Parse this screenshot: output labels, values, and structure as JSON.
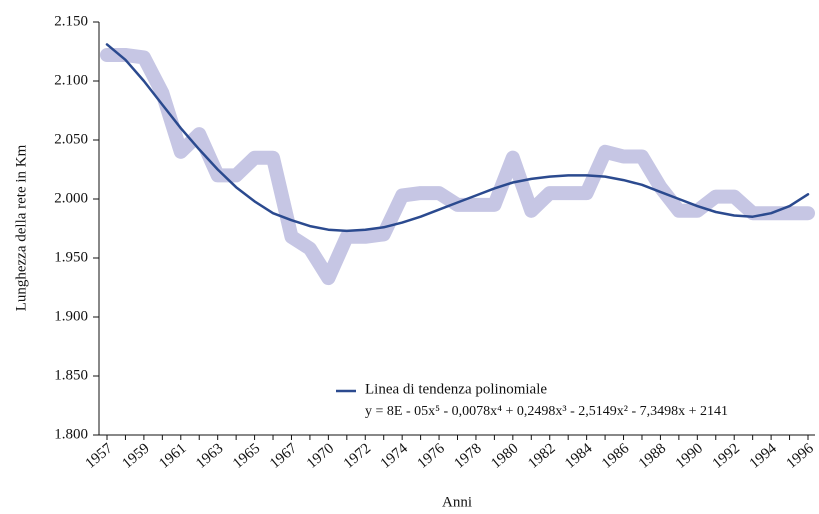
{
  "chart_data": {
    "type": "line",
    "x_label": "Anni",
    "y_label": "Lunghezza della rete in Km",
    "categories": [
      "1957",
      null,
      "1959",
      null,
      "1961",
      null,
      "1963",
      null,
      "1965",
      null,
      "1967",
      null,
      "1970",
      null,
      "1972",
      null,
      "1974",
      null,
      "1976",
      null,
      "1978",
      null,
      "1980",
      null,
      "1982",
      null,
      "1984",
      null,
      "1986",
      null,
      "1988",
      null,
      "1990",
      null,
      "1992",
      null,
      "1994",
      null,
      "1996"
    ],
    "series": [
      {
        "color": "#c6c6e4",
        "values": [
          2122,
          2122,
          2120,
          2090,
          2040,
          2055,
          2020,
          2020,
          2035,
          2035,
          1968,
          1958,
          1933,
          1968,
          1968,
          1970,
          2003,
          2005,
          2005,
          1995,
          1995,
          1995,
          2035,
          1990,
          2005,
          2005,
          2005,
          2040,
          2036,
          2036,
          2010,
          1990,
          1990,
          2002,
          2002,
          1988,
          1988,
          1988,
          1988
        ]
      },
      {
        "name": "Linea di tendenza polinomiale",
        "color": "#2b4a8f",
        "values": [
          2131,
          2118,
          2100,
          2080,
          2060,
          2042,
          2025,
          2010,
          1998,
          1988,
          1982,
          1977,
          1974,
          1973,
          1974,
          1976,
          1980,
          1985,
          1991,
          1997,
          2003,
          2009,
          2014,
          2017,
          2019,
          2020,
          2020,
          2019,
          2016,
          2012,
          2006,
          2000,
          1994,
          1989,
          1986,
          1985,
          1988,
          1994,
          2004
        ]
      }
    ],
    "trend_equation": "y = 8E - 05x⁵ - 0,0078x⁴ + 0,2498x³ - 2,5149x² - 7,3498x + 2141",
    "ylim": [
      1800,
      2150
    ],
    "yticks": [
      {
        "value": 1800,
        "label": "1.800"
      },
      {
        "value": 1850,
        "label": "1.850"
      },
      {
        "value": 1900,
        "label": "1.900"
      },
      {
        "value": 1950,
        "label": "1.950"
      },
      {
        "value": 2000,
        "label": "2.000"
      },
      {
        "value": 2050,
        "label": "2.050"
      },
      {
        "value": 2100,
        "label": "2.100"
      },
      {
        "value": 2150,
        "label": "2.150"
      }
    ],
    "grid": false
  }
}
